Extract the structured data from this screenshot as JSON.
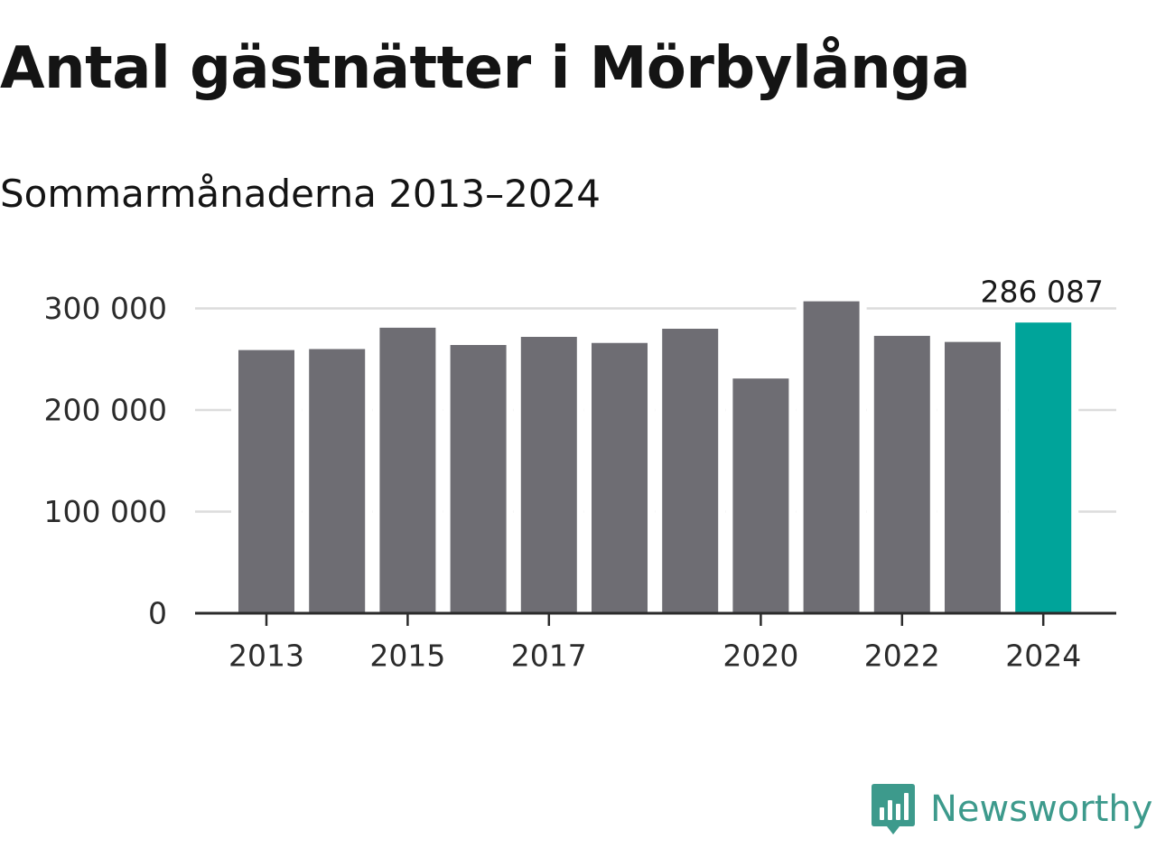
{
  "chart_data": {
    "type": "bar",
    "title": "Antal gästnätter i Mörbylånga",
    "subtitle": "Sommarmånaderna 2013–2024",
    "categories": [
      "2013",
      "2014",
      "2015",
      "2016",
      "2017",
      "2018",
      "2019",
      "2020",
      "2021",
      "2022",
      "2023",
      "2024"
    ],
    "values": [
      259000,
      260000,
      281000,
      264000,
      272000,
      266000,
      280000,
      231000,
      307000,
      273000,
      267000,
      286087
    ],
    "ylim": [
      0,
      320000
    ],
    "yticks": [
      0,
      100000,
      200000,
      300000
    ],
    "ytick_labels": [
      "0",
      "100 000",
      "200 000",
      "300 000"
    ],
    "xtick_labels": [
      "2013",
      "2015",
      "2017",
      "2020",
      "2022",
      "2024"
    ],
    "highlight_index": 11,
    "highlight_label": "286 087",
    "bar_color": "#6e6d73",
    "highlight_color": "#00a49a",
    "grid": true,
    "legend": "none"
  },
  "brand": {
    "name": "Newsworthy",
    "color": "#3d9a8c",
    "logo_icon": "bar-chart-speech-bubble-icon"
  }
}
